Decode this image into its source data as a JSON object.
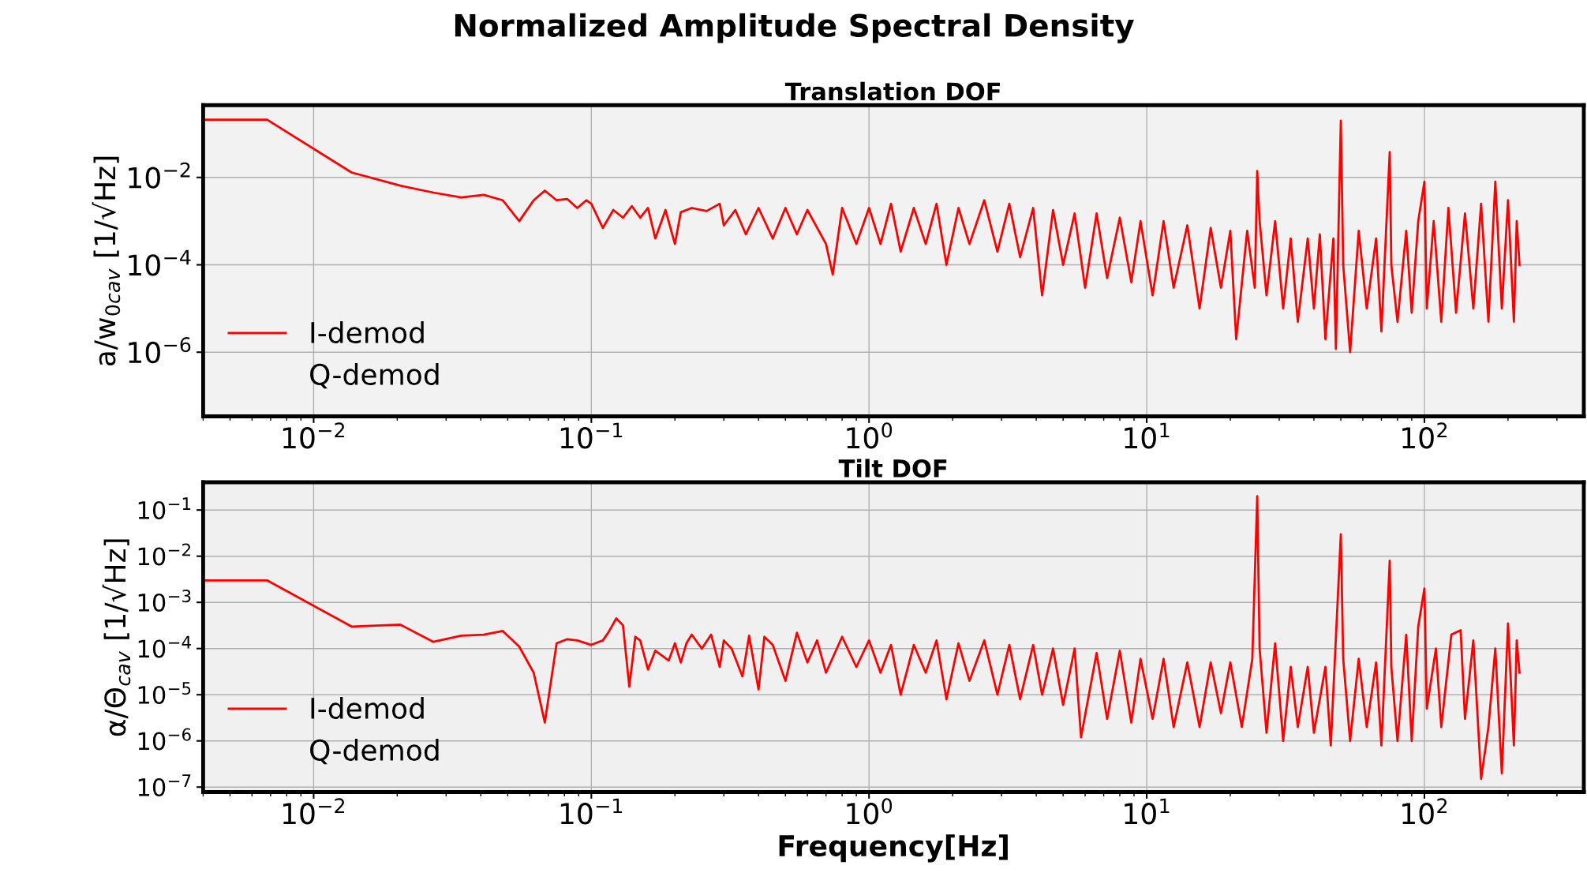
{
  "chart_data": [
    {
      "type": "line",
      "title": "Normalized Amplitude Spectral Density",
      "subtitle": "Translation DOF",
      "ylabel": "a/w$_{0cav}$ [1/√Hz]",
      "log": "xy",
      "grid": true,
      "legend": "bottom left",
      "xlim": [
        0.004,
        375
      ],
      "ylim": [
        3.4e-08,
        0.45
      ],
      "xticks": [
        {
          "value": 0.01,
          "label": "10$^{−2}$"
        },
        {
          "value": 0.1,
          "label": "10$^{−1}$"
        },
        {
          "value": 1,
          "label": "10$^{0}$"
        },
        {
          "value": 10,
          "label": "10$^{1}$"
        },
        {
          "value": 100,
          "label": "10$^{2}$"
        }
      ],
      "yticks": [
        {
          "value": 0.01,
          "label": "10$^{−2}$"
        },
        {
          "value": 0.0001,
          "label": "10$^{−4}$"
        },
        {
          "value": 1e-06,
          "label": "10$^{−6}$"
        }
      ],
      "series": [
        {
          "name": "I-demod",
          "color": "#ff0000",
          "x": [
            0.004,
            0.0068,
            0.0137,
            0.0205,
            0.027,
            0.034,
            0.041,
            0.048,
            0.055,
            0.062,
            0.068,
            0.075,
            0.082,
            0.089,
            0.096,
            0.1,
            0.11,
            0.12,
            0.13,
            0.14,
            0.15,
            0.16,
            0.17,
            0.185,
            0.2,
            0.21,
            0.23,
            0.26,
            0.29,
            0.3,
            0.33,
            0.36,
            0.4,
            0.45,
            0.5,
            0.55,
            0.6,
            0.7,
            0.74,
            0.8,
            0.9,
            1.0,
            1.1,
            1.2,
            1.3,
            1.45,
            1.6,
            1.75,
            1.9,
            2.1,
            2.3,
            2.6,
            2.9,
            3.2,
            3.5,
            3.9,
            4.2,
            4.6,
            5.0,
            5.5,
            6.0,
            6.6,
            7.2,
            8.0,
            8.8,
            9.5,
            10.5,
            11.5,
            12.5,
            14,
            15.5,
            17,
            18.5,
            20,
            21,
            23,
            24.5,
            25,
            25.5,
            27,
            29,
            31,
            33,
            35,
            38,
            40,
            42,
            44,
            47,
            48,
            50,
            51,
            54,
            58,
            62,
            67,
            70,
            75,
            76,
            80,
            86,
            90,
            95,
            100,
            102,
            108,
            115,
            122,
            130,
            140,
            150,
            160,
            170,
            180,
            190,
            200,
            210,
            215,
            220
          ],
          "values": [
            0.21,
            0.21,
            0.013,
            0.0065,
            0.0045,
            0.0035,
            0.004,
            0.003,
            0.001,
            0.003,
            0.005,
            0.003,
            0.0032,
            0.002,
            0.003,
            0.0025,
            0.0007,
            0.0018,
            0.0012,
            0.0022,
            0.0012,
            0.002,
            0.0004,
            0.0018,
            0.0003,
            0.0016,
            0.002,
            0.0017,
            0.0025,
            0.0008,
            0.0018,
            0.0005,
            0.002,
            0.0004,
            0.002,
            0.0005,
            0.0018,
            0.0003,
            6e-05,
            0.002,
            0.0003,
            0.002,
            0.0003,
            0.0025,
            0.0002,
            0.002,
            0.0003,
            0.0025,
            0.0001,
            0.002,
            0.0003,
            0.003,
            0.0002,
            0.0025,
            0.00015,
            0.002,
            2e-05,
            0.0018,
            0.0001,
            0.0015,
            3e-05,
            0.0015,
            5e-05,
            0.0012,
            4e-05,
            0.001,
            2e-05,
            0.001,
            3e-05,
            0.0008,
            1e-05,
            0.0007,
            3e-05,
            0.0006,
            2e-06,
            0.0006,
            3e-05,
            0.014,
            0.001,
            2e-05,
            0.001,
            1e-05,
            0.0004,
            5e-06,
            0.0004,
            1e-05,
            0.0005,
            2e-06,
            0.0004,
            1.2e-06,
            0.2,
            0.0001,
            1e-06,
            0.0006,
            1e-05,
            0.0004,
            3e-06,
            0.038,
            0.0001,
            5e-06,
            0.0006,
            8e-06,
            0.001,
            0.008,
            1e-05,
            0.001,
            5e-06,
            0.002,
            8e-06,
            0.0015,
            1e-05,
            0.0025,
            5e-06,
            0.008,
            1e-05,
            0.003,
            5e-06,
            0.001,
            0.0001
          ]
        },
        {
          "name": "Q-demod"
        }
      ]
    },
    {
      "type": "line",
      "subtitle": "Tilt DOF",
      "xlabel": "Frequency[Hz]",
      "ylabel": "α/Θ$_{cav}$ [1/√Hz]",
      "log": "xy",
      "grid": true,
      "legend": "bottom left",
      "xlim": [
        0.004,
        375
      ],
      "ylim": [
        7.8e-08,
        0.4
      ],
      "xticks": [
        {
          "value": 0.01,
          "label": "10$^{−2}$"
        },
        {
          "value": 0.1,
          "label": "10$^{−1}$"
        },
        {
          "value": 1,
          "label": "10$^{0}$"
        },
        {
          "value": 10,
          "label": "10$^{1}$"
        },
        {
          "value": 100,
          "label": "10$^{2}$"
        }
      ],
      "yticks": [
        {
          "value": 0.1,
          "label": "10$^{−1}$"
        },
        {
          "value": 0.01,
          "label": "10$^{−2}$"
        },
        {
          "value": 0.001,
          "label": "10$^{−3}$"
        },
        {
          "value": 0.0001,
          "label": "10$^{−4}$"
        },
        {
          "value": 1e-05,
          "label": "10$^{−5}$"
        },
        {
          "value": 1e-06,
          "label": "10$^{−6}$"
        },
        {
          "value": 1e-07,
          "label": "10$^{−7}$"
        }
      ],
      "series": [
        {
          "name": "I-demod",
          "color": "#ff0000",
          "x": [
            0.004,
            0.0068,
            0.0137,
            0.0205,
            0.027,
            0.034,
            0.041,
            0.048,
            0.055,
            0.062,
            0.068,
            0.075,
            0.082,
            0.089,
            0.1,
            0.11,
            0.115,
            0.123,
            0.13,
            0.137,
            0.144,
            0.15,
            0.16,
            0.17,
            0.19,
            0.2,
            0.21,
            0.22,
            0.23,
            0.25,
            0.27,
            0.29,
            0.3,
            0.32,
            0.35,
            0.37,
            0.4,
            0.42,
            0.45,
            0.5,
            0.55,
            0.6,
            0.65,
            0.7,
            0.8,
            0.9,
            1.0,
            1.1,
            1.2,
            1.3,
            1.45,
            1.6,
            1.75,
            1.9,
            2.1,
            2.3,
            2.6,
            2.9,
            3.2,
            3.5,
            3.9,
            4.2,
            4.6,
            5.0,
            5.5,
            5.8,
            6.6,
            7.2,
            8.0,
            8.8,
            9.5,
            10.5,
            11.5,
            12.5,
            14,
            15.5,
            17,
            18.5,
            20,
            22,
            24,
            25,
            25.5,
            27,
            29,
            31,
            33,
            35,
            38,
            40,
            44,
            46,
            50,
            51,
            54,
            58,
            62,
            67,
            70,
            75,
            76,
            80,
            86,
            90,
            95,
            100,
            102,
            110,
            115,
            125,
            135,
            140,
            150,
            160,
            170,
            180,
            190,
            200,
            210,
            215,
            220
          ],
          "values": [
            0.003,
            0.003,
            0.0003,
            0.00033,
            0.00014,
            0.00019,
            0.0002,
            0.00024,
            0.00011,
            3e-05,
            2.5e-06,
            0.00013,
            0.00016,
            0.00015,
            0.00012,
            0.00015,
            0.00022,
            0.00045,
            0.00032,
            1.5e-05,
            0.00018,
            0.00015,
            3.5e-05,
            9e-05,
            5.5e-05,
            0.00013,
            5e-05,
            0.00013,
            0.0002,
            0.0001,
            0.0002,
            4e-05,
            0.00015,
            0.0001,
            2.5e-05,
            0.00019,
            1.3e-05,
            0.00018,
            0.00012,
            2e-05,
            0.00022,
            5e-05,
            0.00015,
            3e-05,
            0.00018,
            4e-05,
            0.00015,
            3e-05,
            0.00012,
            1e-05,
            0.00012,
            3e-05,
            0.00015,
            8e-06,
            0.00013,
            2e-05,
            0.00015,
            1e-05,
            0.00012,
            8e-06,
            0.00012,
            1e-05,
            0.0001,
            6e-06,
            0.0001,
            1.2e-06,
            8e-05,
            3e-06,
            9e-05,
            2.5e-06,
            6e-05,
            3e-06,
            6e-05,
            2e-06,
            5e-05,
            2e-06,
            5e-05,
            4e-06,
            5e-05,
            2e-06,
            6e-05,
            0.2,
            0.0001,
            1.5e-06,
            0.00013,
            1e-06,
            4e-05,
            2e-06,
            4e-05,
            1.5e-06,
            4e-05,
            8e-07,
            0.03,
            6e-05,
            1e-06,
            6e-05,
            2e-06,
            5e-05,
            8e-07,
            0.008,
            4e-05,
            1e-06,
            0.0002,
            1e-06,
            0.0003,
            0.002,
            5e-06,
            0.0001,
            2e-06,
            0.0002,
            0.00025,
            3e-06,
            0.00015,
            1.5e-07,
            2e-06,
            0.0001,
            2e-07,
            0.00035,
            8e-07,
            0.00015,
            3e-05
          ]
        },
        {
          "name": "Q-demod"
        }
      ]
    }
  ]
}
